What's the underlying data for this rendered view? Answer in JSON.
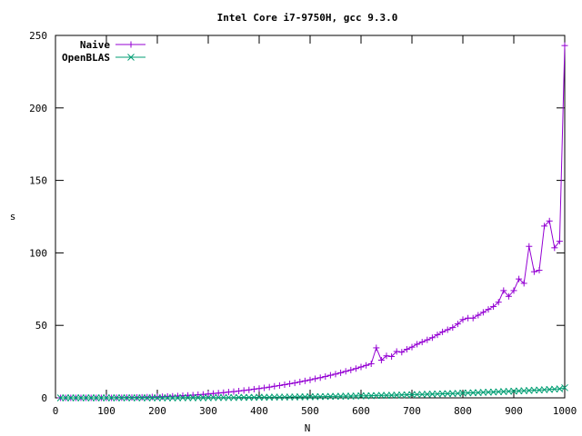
{
  "chart_data": {
    "type": "line",
    "title": "Intel Core i7-9750H, gcc 9.3.0",
    "xlabel": "N",
    "ylabel": "s",
    "xlim": [
      0,
      1000
    ],
    "ylim": [
      0,
      250
    ],
    "xticks": [
      "0",
      "100",
      "200",
      "300",
      "400",
      "500",
      "600",
      "700",
      "800",
      "900",
      "1000"
    ],
    "yticks": [
      "0",
      "50",
      "100",
      "150",
      "200",
      "250"
    ],
    "grid": false,
    "legend_position": "top-left",
    "series": [
      {
        "name": "Naive",
        "color": "#9400d3",
        "marker": "plus",
        "x": [
          10,
          20,
          30,
          40,
          50,
          60,
          70,
          80,
          90,
          100,
          110,
          120,
          130,
          140,
          150,
          160,
          170,
          180,
          190,
          200,
          210,
          220,
          230,
          240,
          250,
          260,
          270,
          280,
          290,
          300,
          310,
          320,
          330,
          340,
          350,
          360,
          370,
          380,
          390,
          400,
          410,
          420,
          430,
          440,
          450,
          460,
          470,
          480,
          490,
          500,
          510,
          520,
          530,
          540,
          550,
          560,
          570,
          580,
          590,
          600,
          610,
          620,
          630,
          640,
          650,
          660,
          670,
          680,
          690,
          700,
          710,
          720,
          730,
          740,
          750,
          760,
          770,
          780,
          790,
          800,
          810,
          820,
          830,
          840,
          850,
          860,
          870,
          880,
          890,
          900,
          910,
          920,
          930,
          940,
          950,
          960,
          970,
          980,
          990,
          1000
        ],
        "y": [
          0,
          0,
          0,
          0,
          0,
          0,
          0,
          0,
          0,
          0,
          0,
          0.1,
          0.1,
          0.2,
          0.2,
          0.3,
          0.4,
          0.5,
          0.6,
          0.7,
          0.8,
          1.0,
          1.1,
          1.3,
          1.5,
          1.7,
          1.9,
          2.2,
          2.4,
          2.7,
          3.0,
          3.3,
          3.6,
          4.0,
          4.3,
          4.7,
          5.1,
          5.5,
          6.0,
          6.4,
          6.9,
          7.4,
          8.0,
          8.5,
          9.1,
          9.7,
          10.3,
          11.0,
          11.7,
          12.4,
          13.2,
          13.9,
          14.7,
          15.6,
          16.4,
          17.3,
          18.3,
          19.2,
          20.2,
          21.3,
          22.4,
          23.5,
          34.5,
          26.0,
          29.0,
          28.5,
          32.0,
          31.5,
          33.5,
          35.0,
          37.0,
          38.5,
          40.0,
          41.5,
          43.5,
          45.5,
          47.0,
          48.5,
          51.0,
          54.0,
          55.0,
          55.0,
          57.0,
          59.0,
          61.0,
          63.0,
          66.0,
          74.0,
          70.0,
          74.0,
          82.0,
          79.0,
          104.5,
          87.0,
          88.0,
          118.5,
          122.0,
          103.5,
          108.0,
          243.0
        ]
      },
      {
        "name": "OpenBLAS",
        "color": "#009e73",
        "marker": "cross",
        "x": [
          10,
          20,
          30,
          40,
          50,
          60,
          70,
          80,
          90,
          100,
          110,
          120,
          130,
          140,
          150,
          160,
          170,
          180,
          190,
          200,
          210,
          220,
          230,
          240,
          250,
          260,
          270,
          280,
          290,
          300,
          310,
          320,
          330,
          340,
          350,
          360,
          370,
          380,
          390,
          400,
          410,
          420,
          430,
          440,
          450,
          460,
          470,
          480,
          490,
          500,
          510,
          520,
          530,
          540,
          550,
          560,
          570,
          580,
          590,
          600,
          610,
          620,
          630,
          640,
          650,
          660,
          670,
          680,
          690,
          700,
          710,
          720,
          730,
          740,
          750,
          760,
          770,
          780,
          790,
          800,
          810,
          820,
          830,
          840,
          850,
          860,
          870,
          880,
          890,
          900,
          910,
          920,
          930,
          940,
          950,
          960,
          970,
          980,
          990,
          1000
        ],
        "y": [
          0,
          0,
          0,
          0,
          0,
          0,
          0,
          0,
          0,
          0,
          0,
          0,
          0,
          0,
          0,
          0,
          0,
          0,
          0,
          0,
          0,
          0,
          0,
          0,
          0.1,
          0.1,
          0.1,
          0.1,
          0.1,
          0.1,
          0.2,
          0.2,
          0.2,
          0.2,
          0.2,
          0.3,
          0.3,
          0.3,
          0.3,
          0.4,
          0.4,
          0.4,
          0.5,
          0.5,
          0.5,
          0.6,
          0.6,
          0.7,
          0.7,
          0.8,
          0.8,
          0.9,
          0.9,
          1.0,
          1.0,
          1.1,
          1.2,
          1.2,
          1.3,
          1.4,
          1.4,
          1.5,
          1.6,
          1.7,
          1.7,
          1.8,
          1.9,
          2.0,
          2.1,
          2.2,
          2.3,
          2.4,
          2.5,
          2.6,
          2.7,
          2.8,
          2.9,
          3.0,
          3.1,
          3.3,
          3.4,
          3.5,
          3.6,
          3.8,
          3.9,
          4.0,
          4.2,
          4.3,
          4.5,
          4.6,
          4.8,
          4.9,
          5.1,
          5.3,
          5.4,
          5.6,
          5.8,
          6.0,
          6.2,
          7.0
        ]
      }
    ]
  }
}
